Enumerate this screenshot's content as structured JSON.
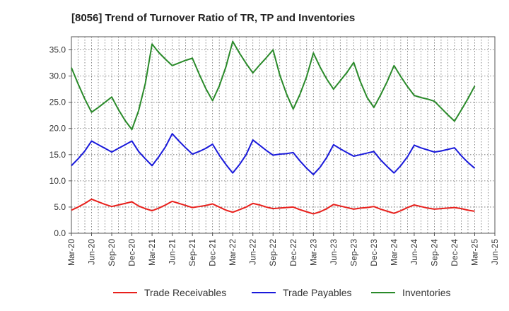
{
  "chart_data": {
    "type": "line",
    "title": "[8056]  Trend of Turnover Ratio of TR, TP and Inventories",
    "xlabel": "",
    "ylabel": "",
    "ylim": [
      0,
      37.5
    ],
    "yticks": [
      0.0,
      5.0,
      10.0,
      15.0,
      20.0,
      25.0,
      30.0,
      35.0
    ],
    "ytick_labels": [
      "0.0",
      "5.0",
      "10.0",
      "15.0",
      "20.0",
      "25.0",
      "30.0",
      "35.0"
    ],
    "xtick_labels": [
      "Mar-20",
      "Jun-20",
      "Sep-20",
      "Dec-20",
      "Mar-21",
      "Jun-21",
      "Sep-21",
      "Dec-21",
      "Mar-22",
      "Jun-22",
      "Sep-22",
      "Dec-22",
      "Mar-23",
      "Jun-23",
      "Sep-23",
      "Dec-23",
      "Mar-24",
      "Jun-24",
      "Sep-24",
      "Dec-24",
      "Mar-25",
      "Jun-25"
    ],
    "x": [
      "Mar-20",
      "Apr-20",
      "May-20",
      "Jun-20",
      "Jul-20",
      "Aug-20",
      "Sep-20",
      "Oct-20",
      "Nov-20",
      "Dec-20",
      "Jan-21",
      "Feb-21",
      "Mar-21",
      "Apr-21",
      "May-21",
      "Jun-21",
      "Jul-21",
      "Aug-21",
      "Sep-21",
      "Oct-21",
      "Nov-21",
      "Dec-21",
      "Jan-22",
      "Feb-22",
      "Mar-22",
      "Apr-22",
      "May-22",
      "Jun-22",
      "Jul-22",
      "Aug-22",
      "Sep-22",
      "Oct-22",
      "Nov-22",
      "Dec-22",
      "Jan-23",
      "Feb-23",
      "Mar-23",
      "Apr-23",
      "May-23",
      "Jun-23",
      "Jul-23",
      "Aug-23",
      "Sep-23",
      "Oct-23",
      "Nov-23",
      "Dec-23",
      "Jan-24",
      "Feb-24",
      "Mar-24",
      "Apr-24",
      "May-24",
      "Jun-24",
      "Jul-24",
      "Aug-24",
      "Sep-24",
      "Oct-24",
      "Nov-24",
      "Dec-24",
      "Jan-25",
      "Feb-25",
      "Mar-25"
    ],
    "series": [
      {
        "name": "Trade Receivables",
        "color": "#e8201c",
        "values": [
          4.4,
          5.0,
          5.7,
          6.5,
          6.0,
          5.5,
          5.1,
          5.4,
          5.7,
          6.0,
          5.2,
          4.7,
          4.3,
          4.8,
          5.4,
          6.1,
          5.7,
          5.3,
          4.9,
          5.1,
          5.3,
          5.6,
          5.0,
          4.4,
          4.0,
          4.5,
          5.0,
          5.7,
          5.4,
          5.0,
          4.7,
          4.8,
          4.9,
          5.0,
          4.5,
          4.1,
          3.7,
          4.1,
          4.7,
          5.5,
          5.2,
          4.9,
          4.6,
          4.8,
          4.9,
          5.1,
          4.6,
          4.2,
          3.8,
          4.3,
          4.9,
          5.4,
          5.1,
          4.8,
          4.6,
          4.7,
          4.8,
          4.9,
          4.7,
          4.4,
          4.2
        ]
      },
      {
        "name": "Trade Payables",
        "color": "#1a1adb",
        "values": [
          12.9,
          14.2,
          15.7,
          17.6,
          16.9,
          16.2,
          15.5,
          16.2,
          16.9,
          17.6,
          15.6,
          14.2,
          12.9,
          14.6,
          16.5,
          19.0,
          17.6,
          16.3,
          15.1,
          15.6,
          16.2,
          17.0,
          14.9,
          13.1,
          11.5,
          13.1,
          15.0,
          17.8,
          16.8,
          15.8,
          14.9,
          15.1,
          15.2,
          15.4,
          13.8,
          12.4,
          11.2,
          12.6,
          14.5,
          16.9,
          16.1,
          15.4,
          14.7,
          15.0,
          15.3,
          15.6,
          14.0,
          12.7,
          11.5,
          12.9,
          14.6,
          16.8,
          16.3,
          15.9,
          15.5,
          15.7,
          16.0,
          16.3,
          14.8,
          13.5,
          12.4
        ]
      },
      {
        "name": "Inventories",
        "color": "#2a8a2a",
        "values": [
          31.6,
          28.5,
          25.6,
          23.1,
          24.0,
          25.0,
          26.0,
          23.6,
          21.5,
          19.8,
          23.4,
          28.6,
          36.1,
          34.5,
          33.2,
          32.0,
          32.5,
          33.0,
          33.4,
          30.4,
          27.6,
          25.3,
          28.1,
          31.8,
          36.6,
          34.4,
          32.4,
          30.6,
          32.1,
          33.5,
          35.0,
          30.2,
          26.6,
          23.7,
          26.5,
          29.9,
          34.4,
          31.7,
          29.4,
          27.5,
          29.1,
          30.7,
          32.6,
          28.9,
          25.9,
          24.0,
          26.4,
          29.0,
          32.0,
          29.9,
          28.0,
          26.3,
          25.9,
          25.6,
          25.2,
          23.9,
          22.6,
          21.4,
          23.5,
          25.7,
          28.1
        ]
      }
    ],
    "grid": true,
    "legend_position": "bottom"
  }
}
